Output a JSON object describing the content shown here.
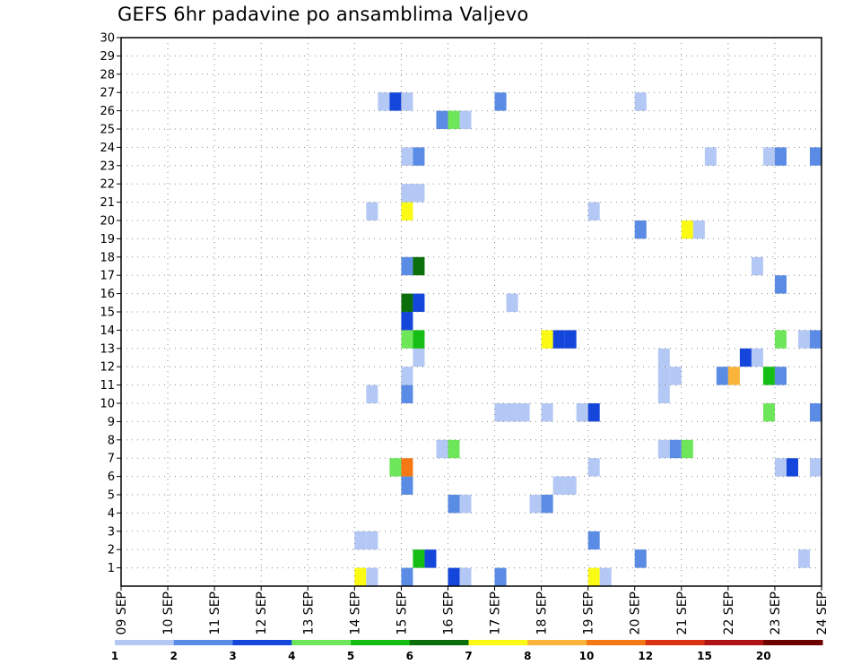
{
  "chart_data": {
    "type": "heatmap",
    "title": "GEFS 6hr padavine po ansamblima Valjevo",
    "xlabel": "",
    "ylabel": "",
    "x_tick_labels": [
      "09 SEP",
      "10 SEP",
      "11 SEP",
      "12 SEP",
      "13 SEP",
      "14 SEP",
      "15 SEP",
      "16 SEP",
      "17 SEP",
      "18 SEP",
      "19 SEP",
      "20 SEP",
      "21 SEP",
      "22 SEP",
      "23 SEP",
      "24 SEP"
    ],
    "xlim_days": [
      0,
      15
    ],
    "time_step_hours": 6,
    "y_tick_labels": [
      "1",
      "2",
      "3",
      "4",
      "5",
      "6",
      "7",
      "8",
      "9",
      "10",
      "11",
      "12",
      "13",
      "14",
      "15",
      "16",
      "17",
      "18",
      "19",
      "20",
      "21",
      "22",
      "23",
      "24",
      "25",
      "26",
      "27",
      "28",
      "29",
      "30"
    ],
    "ylim": [
      0,
      30
    ],
    "grid": true,
    "colorbar": {
      "labels": [
        "1",
        "2",
        "3",
        "4",
        "5",
        "6",
        "7",
        "8",
        "10",
        "12",
        "15",
        "20"
      ],
      "colors": [
        "#b4c8f5",
        "#5a8ce6",
        "#1446dc",
        "#6ee65a",
        "#14be14",
        "#0a6e0a",
        "#fafa14",
        "#fab43c",
        "#f57814",
        "#dc3214",
        "#af1414",
        "#6e0000"
      ]
    },
    "cells": [
      {
        "t": 5.0,
        "member": 1,
        "class": 7
      },
      {
        "t": 5.25,
        "member": 1,
        "class": 1
      },
      {
        "t": 6.0,
        "member": 1,
        "class": 2
      },
      {
        "t": 7.0,
        "member": 1,
        "class": 3
      },
      {
        "t": 7.25,
        "member": 1,
        "class": 1
      },
      {
        "t": 8.0,
        "member": 1,
        "class": 2
      },
      {
        "t": 10.0,
        "member": 1,
        "class": 7
      },
      {
        "t": 10.25,
        "member": 1,
        "class": 1
      },
      {
        "t": 6.25,
        "member": 2,
        "class": 5
      },
      {
        "t": 6.5,
        "member": 2,
        "class": 3
      },
      {
        "t": 11.0,
        "member": 2,
        "class": 2
      },
      {
        "t": 14.5,
        "member": 2,
        "class": 1
      },
      {
        "t": 5.0,
        "member": 3,
        "class": 1
      },
      {
        "t": 5.25,
        "member": 3,
        "class": 1
      },
      {
        "t": 10.0,
        "member": 3,
        "class": 2
      },
      {
        "t": 7.0,
        "member": 5,
        "class": 2
      },
      {
        "t": 7.25,
        "member": 5,
        "class": 1
      },
      {
        "t": 8.75,
        "member": 5,
        "class": 1
      },
      {
        "t": 9.0,
        "member": 5,
        "class": 2
      },
      {
        "t": 6.0,
        "member": 6,
        "class": 2
      },
      {
        "t": 9.25,
        "member": 6,
        "class": 1
      },
      {
        "t": 9.5,
        "member": 6,
        "class": 1
      },
      {
        "t": 5.75,
        "member": 7,
        "class": 4
      },
      {
        "t": 6.0,
        "member": 7,
        "class": 9
      },
      {
        "t": 10.0,
        "member": 7,
        "class": 1
      },
      {
        "t": 14.0,
        "member": 7,
        "class": 1
      },
      {
        "t": 14.25,
        "member": 7,
        "class": 3
      },
      {
        "t": 14.75,
        "member": 7,
        "class": 1
      },
      {
        "t": 6.75,
        "member": 8,
        "class": 1
      },
      {
        "t": 7.0,
        "member": 8,
        "class": 4
      },
      {
        "t": 11.5,
        "member": 8,
        "class": 1
      },
      {
        "t": 11.75,
        "member": 8,
        "class": 2
      },
      {
        "t": 12.0,
        "member": 8,
        "class": 4
      },
      {
        "t": 8.0,
        "member": 10,
        "class": 1
      },
      {
        "t": 8.25,
        "member": 10,
        "class": 1
      },
      {
        "t": 8.5,
        "member": 10,
        "class": 1
      },
      {
        "t": 9.0,
        "member": 10,
        "class": 1
      },
      {
        "t": 9.75,
        "member": 10,
        "class": 1
      },
      {
        "t": 10.0,
        "member": 10,
        "class": 3
      },
      {
        "t": 13.75,
        "member": 10,
        "class": 4
      },
      {
        "t": 14.75,
        "member": 10,
        "class": 2
      },
      {
        "t": 5.25,
        "member": 11,
        "class": 1
      },
      {
        "t": 6.0,
        "member": 11,
        "class": 2
      },
      {
        "t": 11.5,
        "member": 11,
        "class": 1
      },
      {
        "t": 6.0,
        "member": 12,
        "class": 1
      },
      {
        "t": 11.5,
        "member": 12,
        "class": 1
      },
      {
        "t": 11.75,
        "member": 12,
        "class": 1
      },
      {
        "t": 12.75,
        "member": 12,
        "class": 2
      },
      {
        "t": 13.0,
        "member": 12,
        "class": 8
      },
      {
        "t": 13.75,
        "member": 12,
        "class": 5
      },
      {
        "t": 14.0,
        "member": 12,
        "class": 2
      },
      {
        "t": 6.25,
        "member": 13,
        "class": 1
      },
      {
        "t": 11.5,
        "member": 13,
        "class": 1
      },
      {
        "t": 13.25,
        "member": 13,
        "class": 3
      },
      {
        "t": 13.5,
        "member": 13,
        "class": 1
      },
      {
        "t": 6.0,
        "member": 14,
        "class": 4
      },
      {
        "t": 6.25,
        "member": 14,
        "class": 5
      },
      {
        "t": 9.0,
        "member": 14,
        "class": 7
      },
      {
        "t": 9.25,
        "member": 14,
        "class": 3
      },
      {
        "t": 9.5,
        "member": 14,
        "class": 3
      },
      {
        "t": 14.0,
        "member": 14,
        "class": 4
      },
      {
        "t": 14.5,
        "member": 14,
        "class": 1
      },
      {
        "t": 14.75,
        "member": 14,
        "class": 2
      },
      {
        "t": 6.0,
        "member": 15,
        "class": 3
      },
      {
        "t": 6.0,
        "member": 16,
        "class": 6
      },
      {
        "t": 6.25,
        "member": 16,
        "class": 3
      },
      {
        "t": 8.25,
        "member": 16,
        "class": 1
      },
      {
        "t": 14.0,
        "member": 17,
        "class": 2
      },
      {
        "t": 6.0,
        "member": 18,
        "class": 2
      },
      {
        "t": 6.25,
        "member": 18,
        "class": 6
      },
      {
        "t": 13.5,
        "member": 18,
        "class": 1
      },
      {
        "t": 11.0,
        "member": 20,
        "class": 2
      },
      {
        "t": 12.0,
        "member": 20,
        "class": 7
      },
      {
        "t": 12.25,
        "member": 20,
        "class": 1
      },
      {
        "t": 5.25,
        "member": 21,
        "class": 1
      },
      {
        "t": 6.0,
        "member": 21,
        "class": 7
      },
      {
        "t": 10.0,
        "member": 21,
        "class": 1
      },
      {
        "t": 6.0,
        "member": 22,
        "class": 1
      },
      {
        "t": 6.25,
        "member": 22,
        "class": 1
      },
      {
        "t": 6.0,
        "member": 24,
        "class": 1
      },
      {
        "t": 6.25,
        "member": 24,
        "class": 2
      },
      {
        "t": 12.5,
        "member": 24,
        "class": 1
      },
      {
        "t": 13.75,
        "member": 24,
        "class": 1
      },
      {
        "t": 14.0,
        "member": 24,
        "class": 2
      },
      {
        "t": 14.75,
        "member": 24,
        "class": 2
      },
      {
        "t": 6.75,
        "member": 26,
        "class": 2
      },
      {
        "t": 7.0,
        "member": 26,
        "class": 4
      },
      {
        "t": 7.25,
        "member": 26,
        "class": 1
      },
      {
        "t": 5.5,
        "member": 27,
        "class": 1
      },
      {
        "t": 5.75,
        "member": 27,
        "class": 3
      },
      {
        "t": 6.0,
        "member": 27,
        "class": 1
      },
      {
        "t": 8.0,
        "member": 27,
        "class": 2
      },
      {
        "t": 11.0,
        "member": 27,
        "class": 1
      }
    ]
  }
}
